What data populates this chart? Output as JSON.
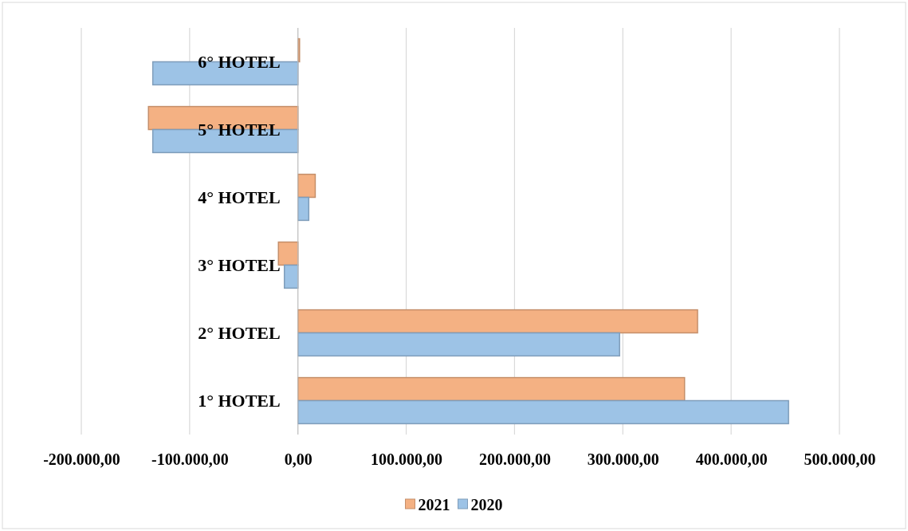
{
  "chart_data": {
    "type": "bar",
    "orientation": "horizontal",
    "categories": [
      "6° HOTEL",
      "5° HOTEL",
      "4° HOTEL",
      "3° HOTEL",
      "2° HOTEL",
      "1° HOTEL"
    ],
    "series": [
      {
        "name": "2021",
        "color": "#f4b183",
        "values": [
          1500,
          -138000,
          16000,
          -18000,
          369000,
          357000
        ]
      },
      {
        "name": "2020",
        "color": "#9dc3e6",
        "values": [
          -134000,
          -134000,
          10000,
          -12500,
          297000,
          453000
        ]
      }
    ],
    "xlim": [
      -200000,
      500000
    ],
    "xticks": [
      {
        "value": -200000,
        "label": "-200.000,00"
      },
      {
        "value": -100000,
        "label": "-100.000,00"
      },
      {
        "value": 0,
        "label": "0,00"
      },
      {
        "value": 100000,
        "label": "100.000,00"
      },
      {
        "value": 200000,
        "label": "200.000,00"
      },
      {
        "value": 300000,
        "label": "300.000,00"
      },
      {
        "value": 400000,
        "label": "400.000,00"
      },
      {
        "value": 500000,
        "label": "500.000,00"
      }
    ],
    "grid": "x",
    "legend": "bottom"
  }
}
